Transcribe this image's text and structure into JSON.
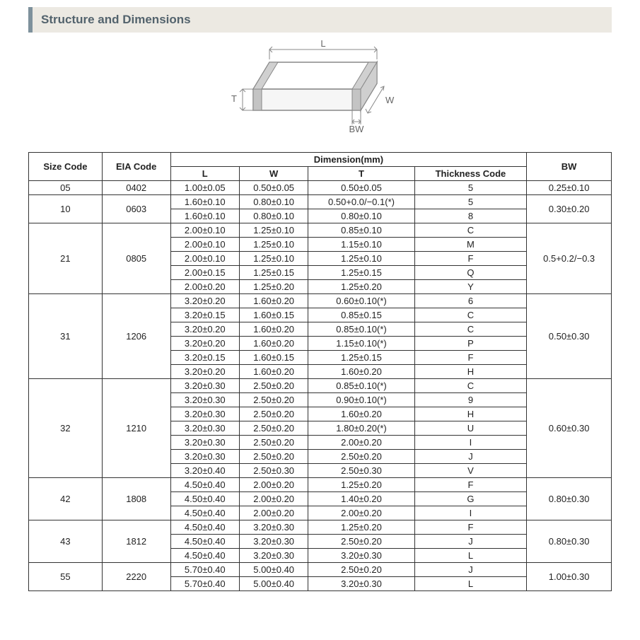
{
  "header": {
    "title": "Structure and Dimensions"
  },
  "diagram": {
    "labels": {
      "L": "L",
      "W": "W",
      "T": "T",
      "BW": "BW"
    },
    "stroke": "#888888",
    "fill_top": "#ffffff",
    "fill_side": "#f2f2f2",
    "fill_end": "#d9d9d9",
    "bw_fill": "#bfbfbf"
  },
  "table": {
    "head": {
      "size_code": "Size Code",
      "eia_code": "EIA Code",
      "dimension_group": "Dimension(mm)",
      "L": "L",
      "W": "W",
      "T": "T",
      "thickness_code": "Thickness  Code",
      "BW": "BW"
    },
    "groups": [
      {
        "size": "05",
        "eia": "0402",
        "bw": "0.25±0.10",
        "rows": [
          {
            "L": "1.00±0.05",
            "W": "0.50±0.05",
            "T": "0.50±0.05",
            "tc": "5"
          }
        ]
      },
      {
        "size": "10",
        "eia": "0603",
        "bw": "0.30±0.20",
        "rows": [
          {
            "L": "1.60±0.10",
            "W": "0.80±0.10",
            "T": "0.50+0.0/−0.1(*)",
            "tc": "5"
          },
          {
            "L": "1.60±0.10",
            "W": "0.80±0.10",
            "T": "0.80±0.10",
            "tc": "8"
          }
        ]
      },
      {
        "size": "21",
        "eia": "0805",
        "bw": "0.5+0.2/−0.3",
        "rows": [
          {
            "L": "2.00±0.10",
            "W": "1.25±0.10",
            "T": "0.85±0.10",
            "tc": "C"
          },
          {
            "L": "2.00±0.10",
            "W": "1.25±0.10",
            "T": "1.15±0.10",
            "tc": "M"
          },
          {
            "L": "2.00±0.10",
            "W": "1.25±0.10",
            "T": "1.25±0.10",
            "tc": "F"
          },
          {
            "L": "2.00±0.15",
            "W": "1.25±0.15",
            "T": "1.25±0.15",
            "tc": "Q"
          },
          {
            "L": "2.00±0.20",
            "W": "1.25±0.20",
            "T": "1.25±0.20",
            "tc": "Y"
          }
        ]
      },
      {
        "size": "31",
        "eia": "1206",
        "bw": "0.50±0.30",
        "rows": [
          {
            "L": "3.20±0.20",
            "W": "1.60±0.20",
            "T": "0.60±0.10(*)",
            "tc": "6"
          },
          {
            "L": "3.20±0.15",
            "W": "1.60±0.15",
            "T": "0.85±0.15",
            "tc": "C"
          },
          {
            "L": "3.20±0.20",
            "W": "1.60±0.20",
            "T": "0.85±0.10(*)",
            "tc": "C"
          },
          {
            "L": "3.20±0.20",
            "W": "1.60±0.20",
            "T": "1.15±0.10(*)",
            "tc": "P"
          },
          {
            "L": "3.20±0.15",
            "W": "1.60±0.15",
            "T": "1.25±0.15",
            "tc": "F"
          },
          {
            "L": "3.20±0.20",
            "W": "1.60±0.20",
            "T": "1.60±0.20",
            "tc": "H"
          }
        ]
      },
      {
        "size": "32",
        "eia": "1210",
        "bw": "0.60±0.30",
        "rows": [
          {
            "L": "3.20±0.30",
            "W": "2.50±0.20",
            "T": "0.85±0.10(*)",
            "tc": "C"
          },
          {
            "L": "3.20±0.30",
            "W": "2.50±0.20",
            "T": "0.90±0.10(*)",
            "tc": "9"
          },
          {
            "L": "3.20±0.30",
            "W": "2.50±0.20",
            "T": "1.60±0.20",
            "tc": "H"
          },
          {
            "L": "3.20±0.30",
            "W": "2.50±0.20",
            "T": "1.80±0.20(*)",
            "tc": "U"
          },
          {
            "L": "3.20±0.30",
            "W": "2.50±0.20",
            "T": "2.00±0.20",
            "tc": "I"
          },
          {
            "L": "3.20±0.30",
            "W": "2.50±0.20",
            "T": "2.50±0.20",
            "tc": "J"
          },
          {
            "L": "3.20±0.40",
            "W": "2.50±0.30",
            "T": "2.50±0.30",
            "tc": "V"
          }
        ]
      },
      {
        "size": "42",
        "eia": "1808",
        "bw": "0.80±0.30",
        "rows": [
          {
            "L": "4.50±0.40",
            "W": "2.00±0.20",
            "T": "1.25±0.20",
            "tc": "F"
          },
          {
            "L": "4.50±0.40",
            "W": "2.00±0.20",
            "T": "1.40±0.20",
            "tc": "G"
          },
          {
            "L": "4.50±0.40",
            "W": "2.00±0.20",
            "T": "2.00±0.20",
            "tc": "I"
          }
        ]
      },
      {
        "size": "43",
        "eia": "1812",
        "bw": "0.80±0.30",
        "rows": [
          {
            "L": "4.50±0.40",
            "W": "3.20±0.30",
            "T": "1.25±0.20",
            "tc": "F"
          },
          {
            "L": "4.50±0.40",
            "W": "3.20±0.30",
            "T": "2.50±0.20",
            "tc": "J"
          },
          {
            "L": "4.50±0.40",
            "W": "3.20±0.30",
            "T": "3.20±0.30",
            "tc": "L"
          }
        ]
      },
      {
        "size": "55",
        "eia": "2220",
        "bw": "1.00±0.30",
        "rows": [
          {
            "L": "5.70±0.40",
            "W": "5.00±0.40",
            "T": "2.50±0.20",
            "tc": "J"
          },
          {
            "L": "5.70±0.40",
            "W": "5.00±0.40",
            "T": "3.20±0.30",
            "tc": "L"
          }
        ]
      }
    ]
  }
}
